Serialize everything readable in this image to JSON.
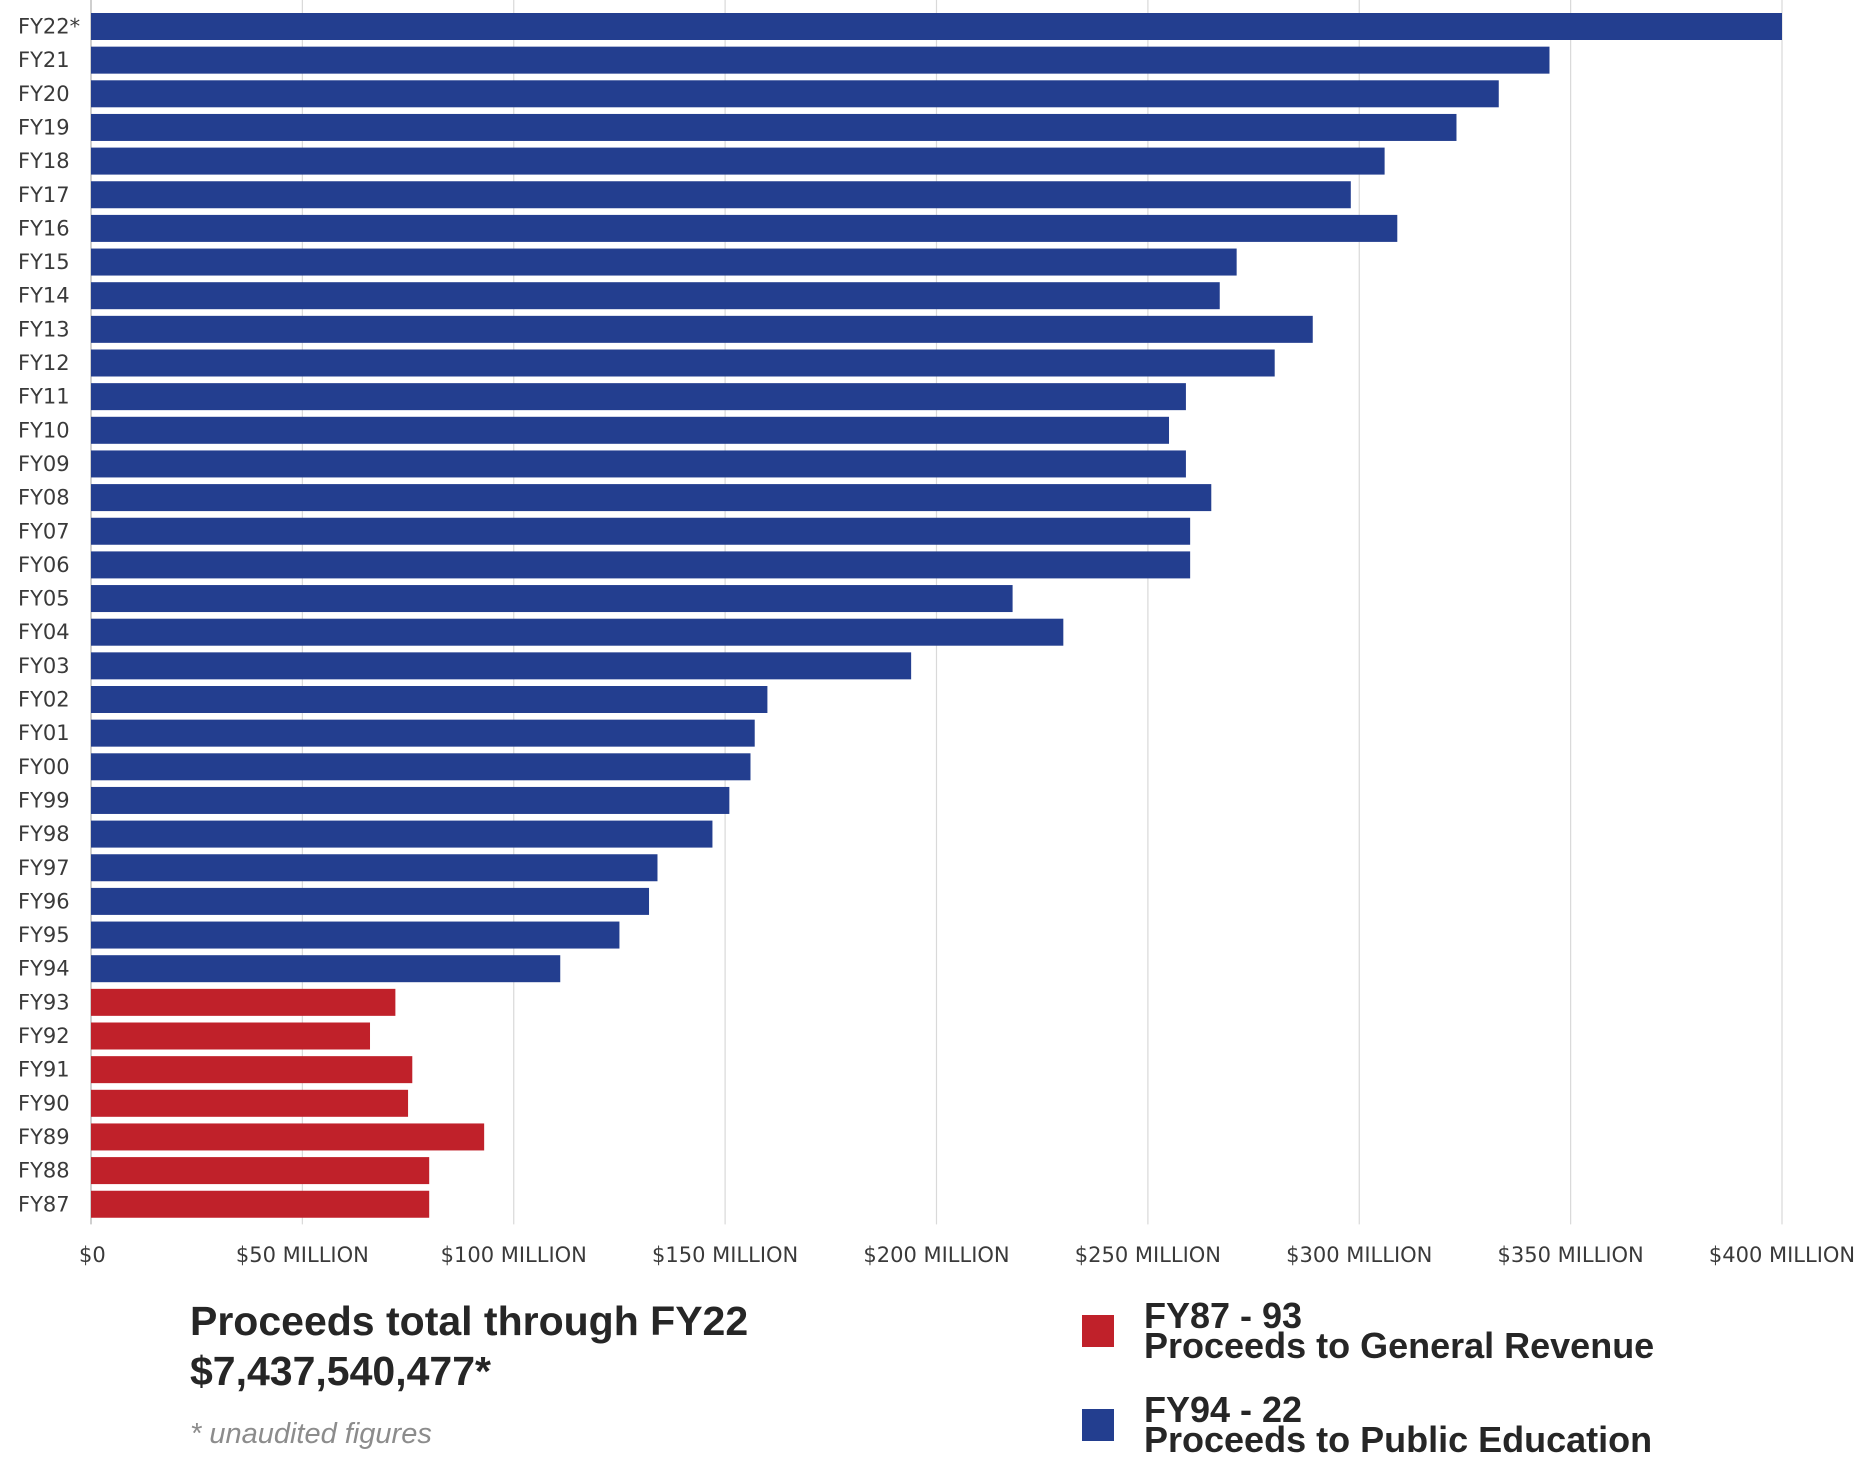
{
  "chart_data": {
    "type": "bar",
    "orientation": "horizontal",
    "categories": [
      "FY22*",
      "FY21",
      "FY20",
      "FY19",
      "FY18",
      "FY17",
      "FY16",
      "FY15",
      "FY14",
      "FY13",
      "FY12",
      "FY11",
      "FY10",
      "FY09",
      "FY08",
      "FY07",
      "FY06",
      "FY05",
      "FY04",
      "FY03",
      "FY02",
      "FY01",
      "FY00",
      "FY99",
      "FY98",
      "FY97",
      "FY96",
      "FY95",
      "FY94",
      "FY93",
      "FY92",
      "FY91",
      "FY90",
      "FY89",
      "FY88",
      "FY87"
    ],
    "values": [
      400,
      345,
      333,
      323,
      306,
      298,
      309,
      271,
      267,
      289,
      280,
      259,
      255,
      259,
      265,
      260,
      260,
      218,
      230,
      194,
      160,
      157,
      156,
      151,
      147,
      134,
      132,
      125,
      111,
      72,
      66,
      76,
      75,
      93,
      80,
      80
    ],
    "value_unit": "$ million",
    "series": [
      {
        "name": "FY87 - 93 Proceeds to General Revenue",
        "categories": [
          "FY93",
          "FY92",
          "FY91",
          "FY90",
          "FY89",
          "FY88",
          "FY87"
        ],
        "color": "#c0212a"
      },
      {
        "name": "FY94 - 22 Proceeds to Public Education",
        "categories": [
          "FY22*",
          "FY21",
          "FY20",
          "FY19",
          "FY18",
          "FY17",
          "FY16",
          "FY15",
          "FY14",
          "FY13",
          "FY12",
          "FY11",
          "FY10",
          "FY09",
          "FY08",
          "FY07",
          "FY06",
          "FY05",
          "FY04",
          "FY03",
          "FY02",
          "FY01",
          "FY00",
          "FY99",
          "FY98",
          "FY97",
          "FY96",
          "FY95",
          "FY94"
        ],
        "color": "#233e8f"
      }
    ],
    "xlim": [
      0,
      400
    ],
    "x_ticks": [
      0,
      50,
      100,
      150,
      200,
      250,
      300,
      350,
      400
    ],
    "x_tick_labels": [
      "$0",
      "$50 MILLION",
      "$100 MILLION",
      "$150 MILLION",
      "$200 MILLION",
      "$250 MILLION",
      "$300 MILLION",
      "$350 MILLION",
      "$400 MILLION"
    ],
    "grid": "vertical",
    "legend_position": "bottom-right",
    "title": "",
    "xlabel": "",
    "ylabel": ""
  },
  "summary": {
    "line1": "Proceeds total through FY22",
    "line2": "$7,437,540,477*",
    "note": "* unaudited figures"
  },
  "legend": [
    {
      "line1": "FY87 - 93",
      "line2": "Proceeds to General Revenue",
      "color": "#c0212a"
    },
    {
      "line1": "FY94 - 22",
      "line2": "Proceeds to Public Education",
      "color": "#233e8f"
    }
  ],
  "colors": {
    "grid": "#d9d9d9",
    "axis": "#bfbfbf",
    "text": "#3a3a3a"
  }
}
